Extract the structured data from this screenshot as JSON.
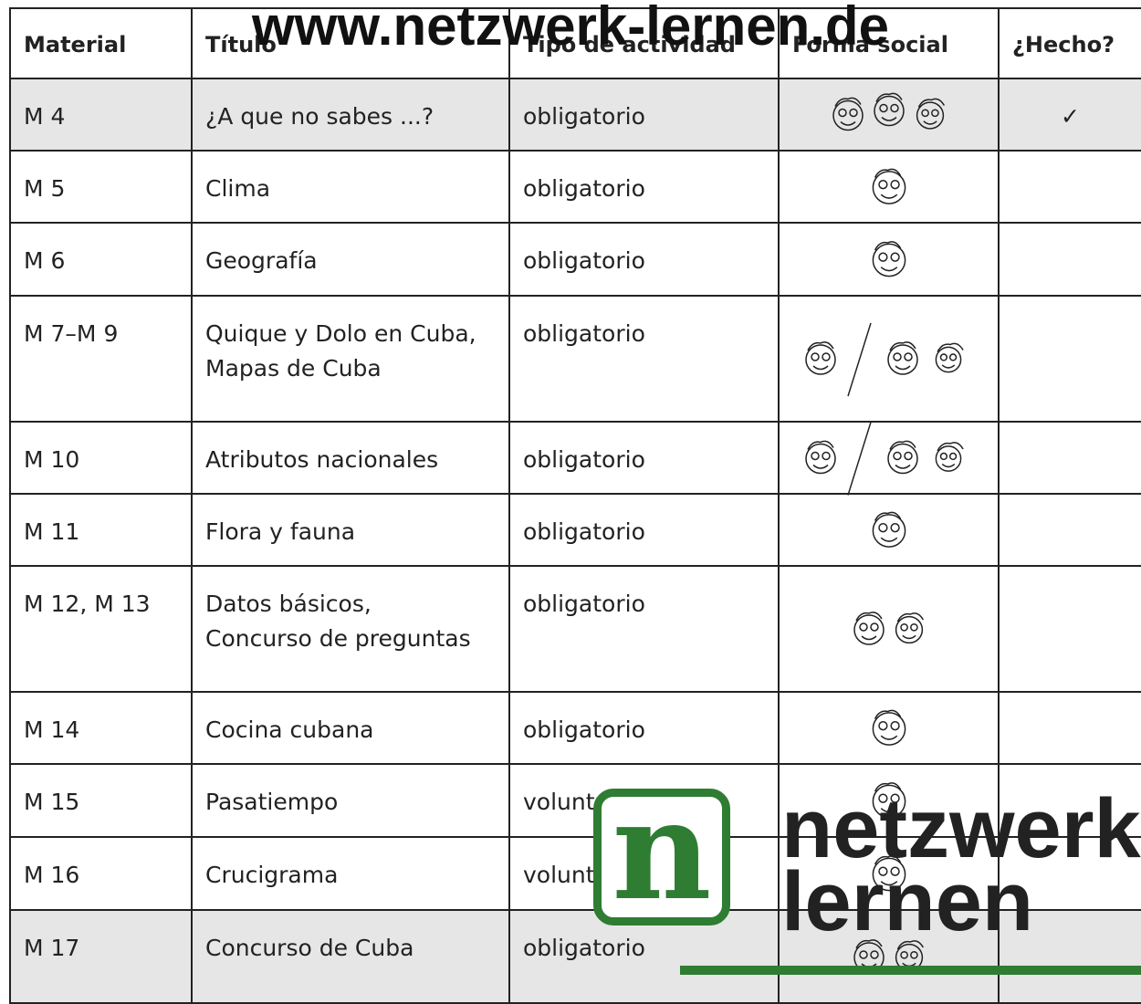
{
  "watermark": "www.netzwerk-lernen.de",
  "table": {
    "header": [
      "Material",
      "Título",
      "Tipo de actividad",
      "Forma social",
      "¿Hecho?"
    ],
    "rows": [
      {
        "material": "M 4",
        "titulo": "¿A que no sabes ...?",
        "tipo": "obligatorio",
        "hecho": "✓"
      },
      {
        "material": "M 5",
        "titulo": "Clima",
        "tipo": "obligatorio"
      },
      {
        "material": "M 6",
        "titulo": "Geografía",
        "tipo": "obligatorio"
      },
      {
        "material": "M 7–M 9",
        "titulo": "Quique y Dolo en Cuba,\nMapas de Cuba",
        "tipo": "obligatorio"
      },
      {
        "material": "M 10",
        "titulo": "Atributos nacionales",
        "tipo": "obligatorio"
      },
      {
        "material": "M 11",
        "titulo": "Flora y fauna",
        "tipo": "obligatorio"
      },
      {
        "material": "M 12, M 13",
        "titulo": "Datos básicos,\nConcurso de preguntas",
        "tipo": "obligatorio"
      },
      {
        "material": "M 14",
        "titulo": "Cocina cubana",
        "tipo": "obligatorio"
      },
      {
        "material": "M 15",
        "titulo": "Pasatiempo",
        "tipo": "voluntario"
      },
      {
        "material": "M 16",
        "titulo": "Crucigrama",
        "tipo": "voluntario"
      },
      {
        "material": "M 17",
        "titulo": "Concurso de Cuba",
        "tipo": "obligatorio"
      }
    ]
  },
  "logo": {
    "mark": "n",
    "line1": "netzwerk",
    "line2": "lernen"
  }
}
